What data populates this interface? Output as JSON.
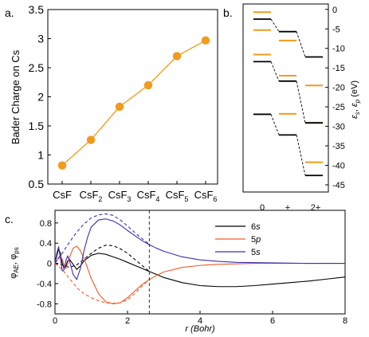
{
  "panel_labels": {
    "a": "a.",
    "b": "b.",
    "c": "c."
  },
  "colors": {
    "orange": "#f29a1c",
    "black": "#000000",
    "orange_red": "#f05a28",
    "blue": "#3b2fb8"
  },
  "chart_data": [
    {
      "id": "a",
      "type": "line",
      "ylabel": "Bader Charge on Cs",
      "categories": [
        {
          "base": "CsF",
          "sub": ""
        },
        {
          "base": "CsF",
          "sub": "2"
        },
        {
          "base": "CsF",
          "sub": "3"
        },
        {
          "base": "CsF",
          "sub": "4"
        },
        {
          "base": "CsF",
          "sub": "5"
        },
        {
          "base": "CsF",
          "sub": "6"
        }
      ],
      "values": [
        0.82,
        1.26,
        1.83,
        2.2,
        2.7,
        2.97
      ],
      "ylim": [
        0.5,
        3.5
      ],
      "yticks": [
        "0.5",
        "1",
        "1.5",
        "2",
        "2.5",
        "3",
        "3.5"
      ],
      "color": "#f29a1c"
    },
    {
      "id": "b",
      "type": "energy_levels",
      "ylabel_parts": {
        "e1": "ε",
        "s1": "s",
        "comma": ", ",
        "e2": "ε",
        "s2": "p",
        "unit": " (eV)"
      },
      "ylim": [
        -45,
        2
      ],
      "yticks": [
        "0",
        "-5",
        "-10",
        "-15",
        "-20",
        "-25",
        "-30",
        "-35",
        "-40",
        "-45"
      ],
      "xticks": [
        "0",
        "+",
        "2+"
      ],
      "black_levels": [
        [
          -2.5,
          -5.7,
          -12.2
        ],
        [
          -13.4,
          -18.4,
          -29.1
        ],
        [
          -26.9,
          -32.2,
          -42.6
        ]
      ],
      "orange_levels": [
        [
          -0.7,
          -8.0,
          -19.5
        ],
        [
          -5.3,
          -17.0,
          -29.1
        ],
        [
          -11.6,
          -26.8,
          -39.2
        ]
      ]
    },
    {
      "id": "c",
      "type": "line",
      "xlabel": "r (Bohr)",
      "ylabel_parts": {
        "phi": "φ",
        "ae": "AE",
        "comma": ", ",
        "phi2": "φ",
        "ps": "ps"
      },
      "xlim": [
        0,
        8
      ],
      "ylim": [
        -1.0,
        1.05
      ],
      "xticks": [
        "0",
        "2",
        "4",
        "6",
        "8"
      ],
      "yticks": [
        "-0.8",
        "-0.4",
        "0",
        "0.4",
        "0.8"
      ],
      "cutoff_radius": 2.6,
      "legend": [
        {
          "label": "6s",
          "base": "6",
          "orb": "s",
          "color": "#000000"
        },
        {
          "label": "5p",
          "base": "5",
          "orb": "p",
          "color": "#f05a28"
        },
        {
          "label": "5s",
          "base": "5",
          "orb": "s",
          "color": "#3b2fb8"
        }
      ],
      "series": [
        {
          "name": "6s",
          "kind": "AE",
          "color": "#000000",
          "x": [
            0,
            0.05,
            0.1,
            0.15,
            0.2,
            0.25,
            0.3,
            0.35,
            0.4,
            0.5,
            0.6,
            0.7,
            0.8,
            1.0,
            1.2,
            1.4,
            1.6,
            1.8,
            2.0,
            2.2,
            2.4,
            2.6,
            2.8,
            3.0,
            3.5,
            4.0,
            4.5,
            5.0,
            5.5,
            6.0,
            6.5,
            7.0,
            7.5,
            8.0
          ],
          "y": [
            0,
            0.15,
            0.28,
            0.2,
            0.0,
            -0.1,
            -0.05,
            0.05,
            0.08,
            -0.02,
            -0.12,
            -0.05,
            0.05,
            0.16,
            0.2,
            0.18,
            0.13,
            0.08,
            0.02,
            -0.04,
            -0.1,
            -0.16,
            -0.22,
            -0.28,
            -0.38,
            -0.44,
            -0.46,
            -0.46,
            -0.44,
            -0.41,
            -0.38,
            -0.35,
            -0.31,
            -0.27
          ]
        },
        {
          "name": "6s",
          "kind": "PS",
          "color": "#000000",
          "x": [
            0,
            0.2,
            0.4,
            0.6,
            0.8,
            1.0,
            1.2,
            1.4,
            1.6,
            1.8,
            2.0,
            2.2,
            2.4,
            2.6
          ],
          "y": [
            0,
            -0.03,
            -0.08,
            -0.03,
            0.08,
            0.2,
            0.3,
            0.36,
            0.35,
            0.29,
            0.2,
            0.08,
            -0.04,
            -0.16
          ]
        },
        {
          "name": "5p",
          "kind": "AE",
          "color": "#f05a28",
          "x": [
            0,
            0.05,
            0.1,
            0.15,
            0.2,
            0.25,
            0.3,
            0.35,
            0.4,
            0.5,
            0.6,
            0.7,
            0.8,
            1.0,
            1.2,
            1.4,
            1.6,
            1.8,
            2.0,
            2.2,
            2.4,
            2.6,
            2.8,
            3.0,
            3.5,
            4.0,
            4.5,
            5.0,
            5.5,
            6.0,
            7.0,
            8.0
          ],
          "y": [
            0,
            0.05,
            0.12,
            0.15,
            0.08,
            -0.05,
            -0.1,
            0.0,
            0.12,
            0.3,
            0.34,
            0.25,
            0.1,
            -0.3,
            -0.6,
            -0.76,
            -0.8,
            -0.78,
            -0.68,
            -0.55,
            -0.42,
            -0.32,
            -0.24,
            -0.17,
            -0.08,
            -0.04,
            -0.02,
            -0.01,
            0,
            0,
            0,
            0
          ]
        },
        {
          "name": "5p",
          "kind": "PS",
          "color": "#f05a28",
          "x": [
            0,
            0.2,
            0.4,
            0.6,
            0.8,
            1.0,
            1.2,
            1.4,
            1.6,
            1.8,
            2.0,
            2.2,
            2.4,
            2.6
          ],
          "y": [
            0,
            -0.12,
            -0.3,
            -0.48,
            -0.6,
            -0.68,
            -0.74,
            -0.78,
            -0.79,
            -0.78,
            -0.72,
            -0.6,
            -0.45,
            -0.32
          ]
        },
        {
          "name": "5s",
          "kind": "AE",
          "color": "#3b2fb8",
          "x": [
            0,
            0.05,
            0.1,
            0.15,
            0.2,
            0.25,
            0.3,
            0.35,
            0.4,
            0.5,
            0.6,
            0.7,
            0.8,
            0.9,
            1.0,
            1.2,
            1.4,
            1.6,
            1.8,
            2.0,
            2.2,
            2.4,
            2.6,
            2.8,
            3.0,
            3.5,
            4.0,
            4.5,
            5.0,
            6.0,
            7.0,
            8.0
          ],
          "y": [
            0,
            0.2,
            0.33,
            0.1,
            -0.15,
            -0.12,
            0.05,
            0.15,
            0.05,
            -0.22,
            -0.32,
            -0.1,
            0.25,
            0.52,
            0.72,
            0.86,
            0.88,
            0.84,
            0.76,
            0.65,
            0.55,
            0.45,
            0.37,
            0.3,
            0.24,
            0.13,
            0.07,
            0.04,
            0.02,
            0.01,
            0,
            0
          ]
        },
        {
          "name": "5s",
          "kind": "PS",
          "color": "#3b2fb8",
          "x": [
            0,
            0.2,
            0.4,
            0.6,
            0.8,
            1.0,
            1.2,
            1.4,
            1.6,
            1.8,
            2.0,
            2.2,
            2.4,
            2.6
          ],
          "y": [
            0,
            0.2,
            0.42,
            0.62,
            0.78,
            0.9,
            0.96,
            0.98,
            0.95,
            0.86,
            0.74,
            0.61,
            0.49,
            0.38
          ]
        }
      ]
    }
  ]
}
